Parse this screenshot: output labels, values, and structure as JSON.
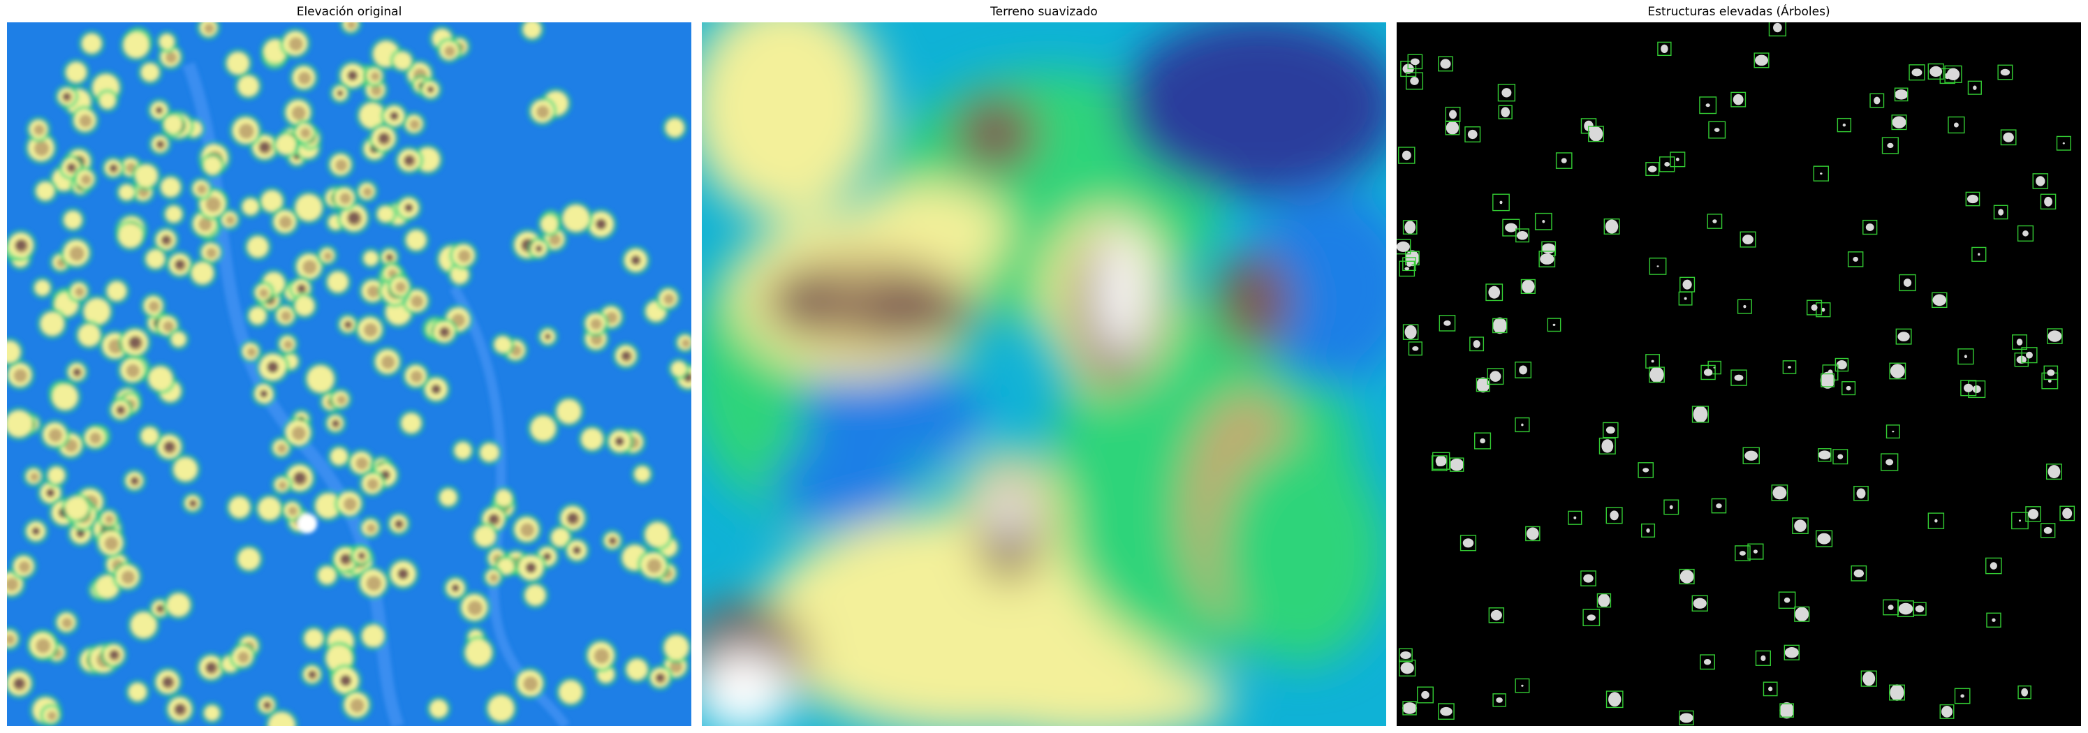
{
  "panels": [
    {
      "title": "Elevación original",
      "colormap": "terrain",
      "view": "raw-elevation"
    },
    {
      "title": "Terreno suavizado",
      "colormap": "terrain",
      "view": "smoothed-elevation"
    },
    {
      "title": "Estructuras elevadas (Árboles)",
      "colormap": "gray",
      "view": "detected-trees",
      "box_color": "#33cc33"
    }
  ],
  "colors": {
    "terrain_deep": "#2c3c9c",
    "terrain_blue": "#1e7fe6",
    "terrain_cyan": "#0fb2d6",
    "terrain_green": "#2fd47a",
    "terrain_yellow": "#f3f09a",
    "terrain_tan": "#c2aa72",
    "terrain_brown": "#7d5c52",
    "terrain_white": "#ffffff",
    "background": "#000000",
    "detection_box": "#33cc33"
  }
}
